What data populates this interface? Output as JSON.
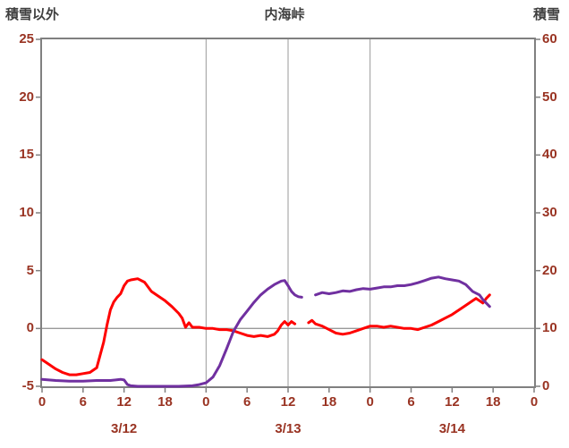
{
  "header": {
    "left_axis_label": "積雪以外",
    "title": "内海峠",
    "right_axis_label": "積雪"
  },
  "colors": {
    "tick_label": "#993322",
    "axis_title": "#3f3f3f",
    "border": "#808080",
    "grid": "#999999",
    "series_red": "#ff0000",
    "series_purple": "#7030a0"
  },
  "chart_data": {
    "type": "line",
    "title": "内海峠",
    "left_axis": {
      "label": "積雪以外",
      "min": -5,
      "max": 25,
      "ticks": [
        25,
        20,
        15,
        10,
        5,
        0,
        -5
      ]
    },
    "right_axis": {
      "label": "積雪",
      "min": 0,
      "max": 60,
      "ticks": [
        60,
        50,
        40,
        30,
        20,
        10,
        0
      ]
    },
    "x_axis": {
      "min_hour": 0,
      "max_hour": 72,
      "tick_hours": [
        0,
        6,
        12,
        18,
        24,
        30,
        36,
        42,
        48,
        54,
        60,
        66,
        72
      ],
      "tick_labels": [
        "0",
        "6",
        "12",
        "18",
        "0",
        "6",
        "12",
        "18",
        "0",
        "6",
        "12",
        "18",
        "0"
      ],
      "date_labels": [
        {
          "label": "3/12",
          "hour": 12
        },
        {
          "label": "3/13",
          "hour": 36
        },
        {
          "label": "3/14",
          "hour": 60
        }
      ]
    },
    "gridlines": {
      "horizontal_left_values": [
        0
      ],
      "vertical_hours": [
        24,
        36,
        48
      ]
    },
    "series": [
      {
        "name": "積雪以外",
        "color": "#ff0000",
        "axis": "left",
        "unit": "",
        "segments": [
          [
            [
              0,
              -2.7
            ],
            [
              1,
              -3.1
            ],
            [
              2,
              -3.5
            ],
            [
              3,
              -3.8
            ],
            [
              4,
              -4
            ],
            [
              5,
              -4
            ],
            [
              6,
              -3.9
            ],
            [
              7,
              -3.8
            ],
            [
              8,
              -3.4
            ],
            [
              9,
              -1.2
            ],
            [
              9.5,
              0.3
            ],
            [
              10,
              1.6
            ],
            [
              10.5,
              2.3
            ],
            [
              11,
              2.7
            ],
            [
              11.5,
              3
            ],
            [
              12,
              3.7
            ],
            [
              12.5,
              4.1
            ],
            [
              13,
              4.2
            ],
            [
              14,
              4.3
            ],
            [
              15,
              4
            ],
            [
              15.5,
              3.6
            ],
            [
              16,
              3.2
            ],
            [
              17,
              2.8
            ],
            [
              18,
              2.4
            ],
            [
              19,
              1.9
            ],
            [
              20,
              1.3
            ],
            [
              20.5,
              0.9
            ],
            [
              21,
              0.1
            ],
            [
              21.5,
              0.5
            ],
            [
              22,
              0.1
            ],
            [
              23,
              0.1
            ],
            [
              24,
              0
            ],
            [
              25,
              0
            ],
            [
              26,
              -0.1
            ],
            [
              27,
              -0.1
            ],
            [
              28,
              -0.2
            ],
            [
              29,
              -0.4
            ],
            [
              30,
              -0.6
            ],
            [
              31,
              -0.7
            ],
            [
              32,
              -0.6
            ],
            [
              33,
              -0.7
            ],
            [
              34,
              -0.5
            ],
            [
              34.5,
              -0.2
            ],
            [
              35,
              0.3
            ],
            [
              35.5,
              0.6
            ],
            [
              36,
              0.3
            ],
            [
              36.5,
              0.6
            ],
            [
              37,
              0.4
            ]
          ],
          [
            [
              39,
              0.5
            ],
            [
              39.5,
              0.7
            ],
            [
              40,
              0.4
            ],
            [
              41,
              0.2
            ],
            [
              42,
              -0.1
            ],
            [
              43,
              -0.4
            ],
            [
              44,
              -0.5
            ],
            [
              45,
              -0.4
            ],
            [
              46,
              -0.2
            ],
            [
              47,
              0
            ],
            [
              48,
              0.2
            ],
            [
              49,
              0.2
            ],
            [
              50,
              0.1
            ],
            [
              51,
              0.2
            ],
            [
              52,
              0.1
            ],
            [
              53,
              0
            ],
            [
              54,
              0
            ],
            [
              55,
              -0.1
            ],
            [
              56,
              0.1
            ],
            [
              57,
              0.3
            ],
            [
              58,
              0.6
            ],
            [
              59,
              0.9
            ],
            [
              60,
              1.2
            ],
            [
              61,
              1.6
            ],
            [
              62,
              2
            ],
            [
              63,
              2.4
            ],
            [
              63.5,
              2.6
            ],
            [
              64,
              2.4
            ],
            [
              64.5,
              2.2
            ],
            [
              65,
              2.6
            ],
            [
              65.5,
              2.9
            ]
          ]
        ]
      },
      {
        "name": "積雪",
        "color": "#7030a0",
        "axis": "right",
        "unit": "cm",
        "segments": [
          [
            [
              0,
              1.2
            ],
            [
              2,
              1
            ],
            [
              4,
              0.9
            ],
            [
              6,
              0.9
            ],
            [
              8,
              1
            ],
            [
              10,
              1
            ],
            [
              11.5,
              1.2
            ],
            [
              12,
              1.1
            ],
            [
              12.5,
              0.3
            ],
            [
              13,
              0.1
            ],
            [
              14,
              0
            ],
            [
              16,
              0
            ],
            [
              18,
              0
            ],
            [
              20,
              0
            ],
            [
              22,
              0.1
            ],
            [
              23,
              0.3
            ],
            [
              24,
              0.6
            ],
            [
              25,
              1.6
            ],
            [
              26,
              3.6
            ],
            [
              27,
              6.5
            ],
            [
              28,
              9.5
            ],
            [
              29,
              11.5
            ],
            [
              30,
              13
            ],
            [
              31,
              14.5
            ],
            [
              32,
              15.8
            ],
            [
              33,
              16.8
            ],
            [
              34,
              17.6
            ],
            [
              35,
              18.2
            ],
            [
              35.5,
              18.3
            ],
            [
              36,
              17.4
            ],
            [
              36.5,
              16.4
            ],
            [
              37,
              15.8
            ],
            [
              37.5,
              15.5
            ],
            [
              38,
              15.4
            ]
          ],
          [
            [
              40,
              15.8
            ],
            [
              41,
              16.2
            ],
            [
              42,
              16
            ],
            [
              43,
              16.2
            ],
            [
              44,
              16.5
            ],
            [
              45,
              16.4
            ],
            [
              46,
              16.7
            ],
            [
              47,
              16.9
            ],
            [
              48,
              16.8
            ],
            [
              49,
              17
            ],
            [
              50,
              17.2
            ],
            [
              51,
              17.2
            ],
            [
              52,
              17.4
            ],
            [
              53,
              17.4
            ],
            [
              54,
              17.6
            ],
            [
              55,
              17.9
            ],
            [
              56,
              18.3
            ],
            [
              57,
              18.7
            ],
            [
              58,
              18.9
            ],
            [
              59,
              18.6
            ],
            [
              60,
              18.4
            ],
            [
              61,
              18.2
            ],
            [
              62,
              17.6
            ],
            [
              63,
              16.4
            ],
            [
              64,
              15.8
            ],
            [
              64.5,
              15
            ],
            [
              65,
              14.4
            ],
            [
              65.5,
              13.8
            ]
          ]
        ]
      }
    ]
  }
}
